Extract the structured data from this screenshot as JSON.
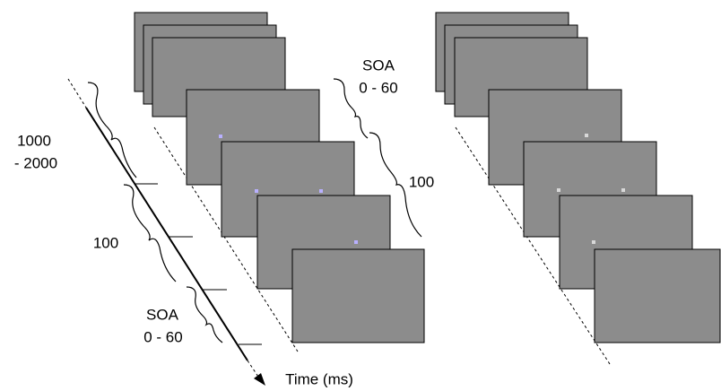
{
  "timeline": {
    "label": "Time (ms)",
    "intervals": [
      [
        "1000",
        "- 2000"
      ],
      [
        "100"
      ],
      [
        "SOA",
        "0 - 60"
      ]
    ]
  },
  "display_labels": [
    [
      "SOA",
      "0 - 60"
    ],
    [
      "100"
    ]
  ]
}
